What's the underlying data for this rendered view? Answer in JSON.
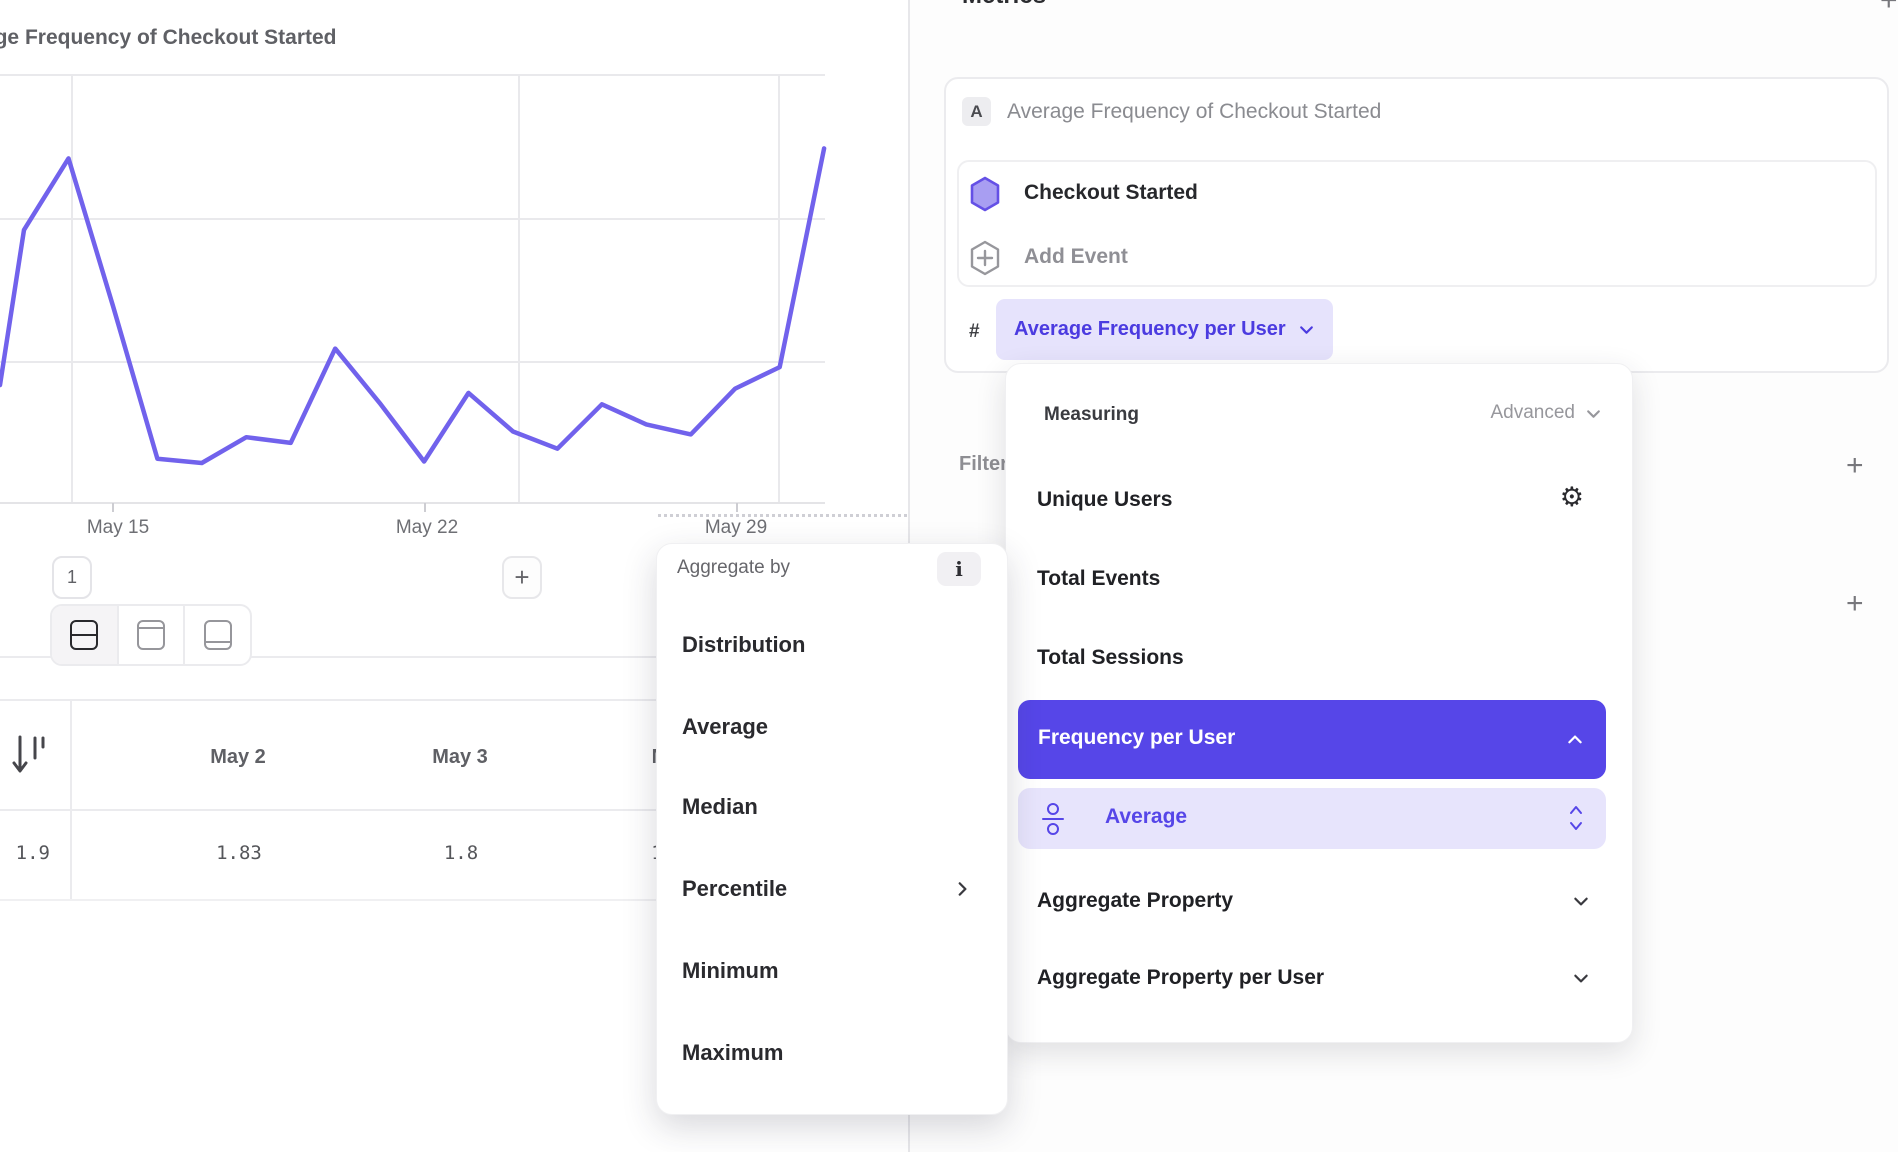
{
  "left_pane": {
    "title": "Average Frequency of Checkout Started",
    "toolbar": {
      "series_badge": "1",
      "add_button": "+"
    },
    "table": {
      "frozen_value": "1.9",
      "columns": [
        {
          "label": "May 2",
          "value": "1.83"
        },
        {
          "label": "May 3",
          "value": "1.8"
        },
        {
          "label": "M",
          "value": "1"
        }
      ]
    }
  },
  "chart_data": {
    "type": "line",
    "title": "Average Frequency of Checkout Started",
    "x": [
      "May 13",
      "May 14",
      "May 15",
      "May 16",
      "May 17",
      "May 18",
      "May 19",
      "May 20",
      "May 21",
      "May 22",
      "May 23",
      "May 24",
      "May 25",
      "May 26",
      "May 27",
      "May 28",
      "May 29",
      "May 30",
      "May 31"
    ],
    "values": [
      2.91,
      3.41,
      2.38,
      1.31,
      1.28,
      1.46,
      1.42,
      2.08,
      1.7,
      1.29,
      1.77,
      1.5,
      1.38,
      1.69,
      1.55,
      1.48,
      1.8,
      1.95,
      3.48
    ],
    "x_tick_labels": [
      "May 15",
      "May 22",
      "May 29"
    ],
    "xlabel": "",
    "ylabel": "",
    "ylim": [
      1,
      4
    ],
    "grid": true,
    "legend": "none",
    "line_color": "#7162ec"
  },
  "sidebar": {
    "section_title": "Metrics",
    "add_metric_button": "+",
    "metric_card": {
      "badge": "A",
      "title": "Average Frequency of Checkout Started",
      "event_name": "Checkout Started",
      "add_event_label": "Add Event",
      "hash_prefix": "#",
      "measure_chip": "Average Frequency per User"
    },
    "filters_label": "Filters",
    "filters_add_button": "+",
    "breakdown_add_button": "+"
  },
  "measuring_popup": {
    "header": "Measuring",
    "mode_label": "Advanced",
    "items": [
      "Unique Users",
      "Total Events",
      "Total Sessions"
    ],
    "selected_item": "Frequency per User",
    "sub_item": "Average",
    "collapsed_items": [
      "Aggregate Property",
      "Aggregate Property per User"
    ]
  },
  "aggregate_popup": {
    "header": "Aggregate by",
    "info_button": "i",
    "items": [
      "Distribution",
      "Average",
      "Median",
      "Percentile",
      "Minimum",
      "Maximum"
    ]
  }
}
